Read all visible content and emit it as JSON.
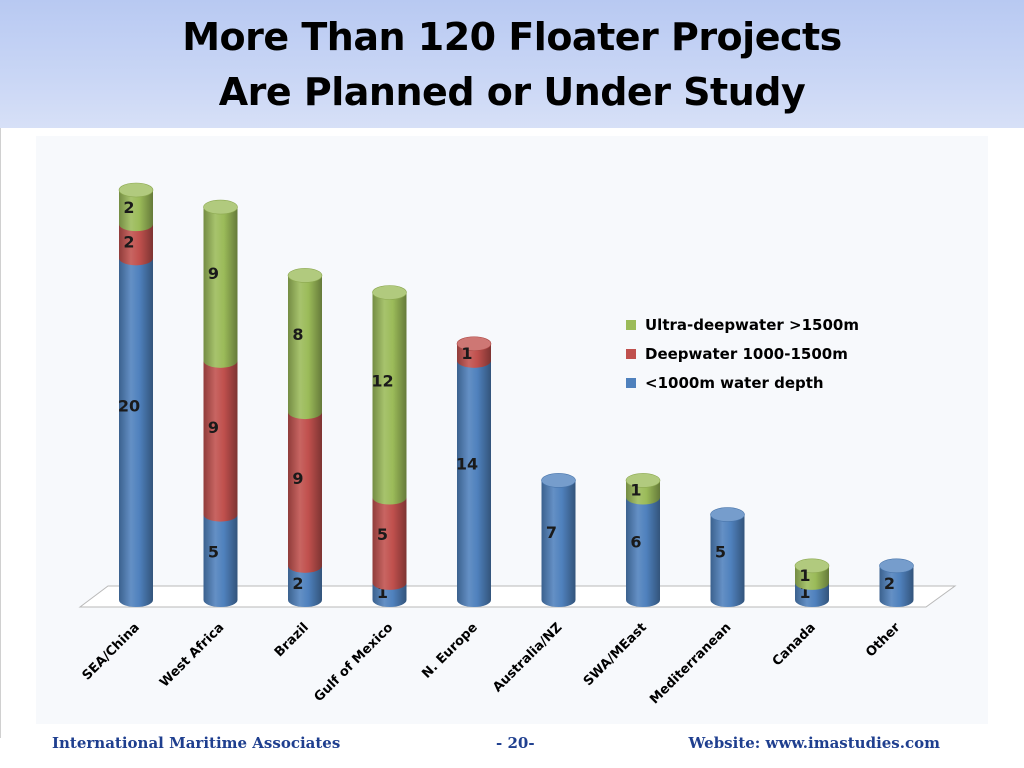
{
  "slide": {
    "title_line1": "More Than 120 Floater Projects",
    "title_line2": "Are Planned or Under Study"
  },
  "footer": {
    "left": "International Maritime Associates",
    "center": "- 20-",
    "right": "Website: www.imastudies.com"
  },
  "colors": {
    "title_band": "#c9d6f5",
    "footer_text": "#1f3f8f"
  },
  "chart_data": {
    "type": "bar",
    "stacked": true,
    "style": "3d-cylinder",
    "categories": [
      "SEA/China",
      "West Africa",
      "Brazil",
      "Gulf of Mexico",
      "N. Europe",
      "Australia/NZ",
      "SWA/MEast",
      "Mediterranean",
      "Canada",
      "Other"
    ],
    "series": [
      {
        "name": "<1000m water depth",
        "color": "#4f81bd",
        "values": [
          20,
          5,
          2,
          1,
          14,
          7,
          6,
          5,
          1,
          2
        ]
      },
      {
        "name": "Deepwater 1000-1500m",
        "color": "#c0504d",
        "values": [
          2,
          9,
          9,
          5,
          1,
          0,
          0,
          0,
          0,
          0
        ]
      },
      {
        "name": "Ultra-deepwater >1500m",
        "color": "#9bbb59",
        "values": [
          2,
          9,
          8,
          12,
          0,
          0,
          1,
          0,
          1,
          0
        ]
      }
    ],
    "legend_order": [
      "Ultra-deepwater >1500m",
      "Deepwater 1000-1500m",
      "<1000m water depth"
    ],
    "legend_position": "right",
    "ylim": [
      0,
      24
    ],
    "grid": false,
    "data_labels": true,
    "xlabel": "",
    "ylabel": ""
  }
}
